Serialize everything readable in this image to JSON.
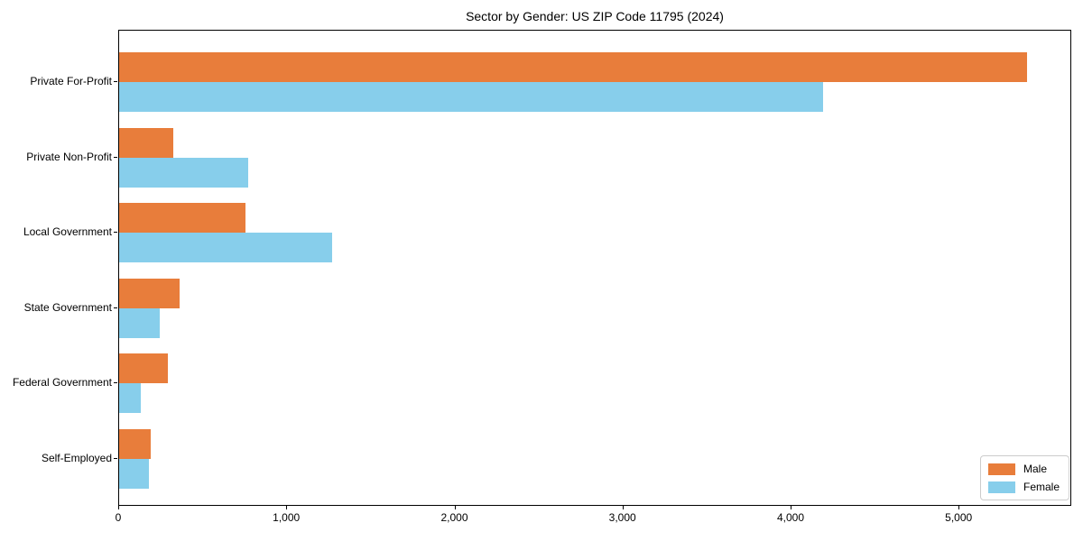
{
  "chart_data": {
    "type": "bar",
    "orientation": "horizontal",
    "title": "Sector by Gender: US ZIP Code 11795 (2024)",
    "categories": [
      "Private For-Profit",
      "Private Non-Profit",
      "Local Government",
      "State Government",
      "Federal Government",
      "Self-Employed"
    ],
    "series": [
      {
        "name": "Male",
        "color": "#e87d3b",
        "values": [
          5400,
          320,
          750,
          360,
          290,
          190
        ]
      },
      {
        "name": "Female",
        "color": "#87ceeb",
        "values": [
          4190,
          770,
          1265,
          240,
          130,
          175
        ]
      }
    ],
    "xlabel": "",
    "ylabel": "",
    "xlim": [
      0,
      5670
    ],
    "xticks": [
      0,
      1000,
      2000,
      3000,
      4000,
      5000
    ],
    "xtick_labels": [
      "0",
      "1,000",
      "2,000",
      "3,000",
      "4,000",
      "5,000"
    ],
    "grid": false,
    "legend": {
      "position": "lower right",
      "entries": [
        "Male",
        "Female"
      ]
    }
  }
}
